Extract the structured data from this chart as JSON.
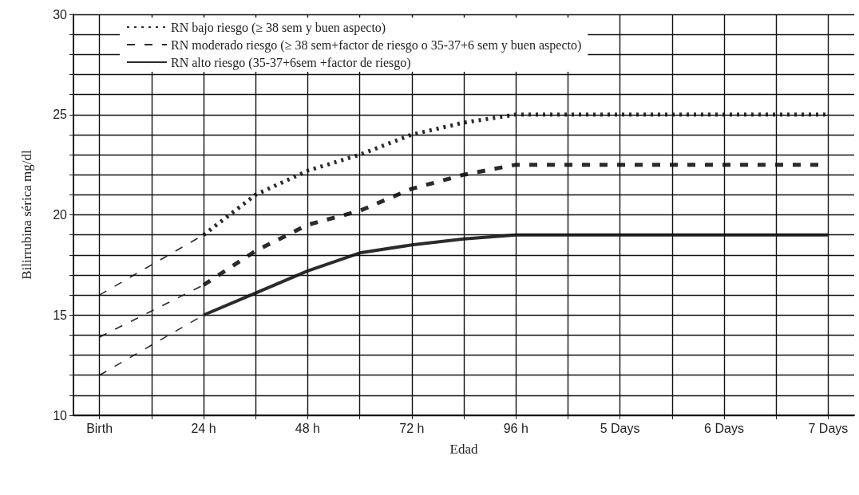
{
  "chart_data": {
    "type": "line",
    "xlabel": "Edad",
    "ylabel": "Bilirrubina sérica mg/dl",
    "categories": [
      "Birth",
      null,
      "24 h",
      null,
      "48 h",
      null,
      "72 h",
      null,
      "96 h",
      null,
      "5 Days",
      null,
      "6 Days",
      null,
      "7 Days"
    ],
    "ylim": [
      10,
      30
    ],
    "yticks": [
      10,
      {
        "value": 11,
        "label": null
      },
      {
        "value": 12,
        "label": null
      },
      {
        "value": 13,
        "label": null
      },
      {
        "value": 14,
        "label": null
      },
      15,
      {
        "value": 16,
        "label": null
      },
      {
        "value": 17,
        "label": null
      },
      {
        "value": 18,
        "label": null
      },
      {
        "value": 19,
        "label": null
      },
      20,
      {
        "value": 21,
        "label": null
      },
      {
        "value": 22,
        "label": null
      },
      {
        "value": 23,
        "label": null
      },
      {
        "value": 24,
        "label": null
      },
      25,
      {
        "value": 26,
        "label": null
      },
      {
        "value": 27,
        "label": null
      },
      {
        "value": 28,
        "label": null
      },
      {
        "value": 29,
        "label": null
      },
      30
    ],
    "grid": true,
    "legend": "top left",
    "marker": "none",
    "series": [
      {
        "name": "RN bajo riesgo (≥ 38 sem y buen aspecto)",
        "color": "#2b2b2b",
        "line_style": "dotted",
        "values": [
          null,
          null,
          19,
          21,
          22.2,
          23,
          24,
          24.6,
          25,
          25,
          25,
          25,
          25,
          25,
          25
        ]
      },
      {
        "name": "RN moderado riesgo (≥ 38 sem+factor de riesgo o 35-37+6 sem y buen aspecto)",
        "color": "#2b2b2b",
        "line_style": "dashed",
        "values": [
          null,
          null,
          16.5,
          18.2,
          19.5,
          20.2,
          21.3,
          22,
          22.5,
          22.5,
          22.5,
          22.5,
          22.5,
          22.5,
          22.5
        ]
      },
      {
        "name": "RN alto riesgo (35-37+6sem +factor de riesgo)",
        "color": "#2b2b2b",
        "line_style": "solid",
        "values": [
          null,
          null,
          15,
          16.1,
          17.2,
          18.1,
          18.5,
          18.8,
          19,
          19,
          19,
          19,
          19,
          19,
          19
        ]
      },
      {
        "color": "#2b2b2b",
        "line_style": "dashed",
        "values": [
          16,
          17.5,
          19,
          null,
          null,
          null,
          null,
          null,
          null,
          null,
          null,
          null,
          null,
          null,
          null
        ]
      },
      {
        "color": "#2b2b2b",
        "line_style": "dashed",
        "values": [
          13.9,
          15.2,
          16.5,
          null,
          null,
          null,
          null,
          null,
          null,
          null,
          null,
          null,
          null,
          null,
          null
        ]
      },
      {
        "color": "#2b2b2b",
        "line_style": "dashed",
        "values": [
          12,
          13.5,
          15,
          null,
          null,
          null,
          null,
          null,
          null,
          null,
          null,
          null,
          null,
          null,
          null
        ]
      }
    ]
  }
}
